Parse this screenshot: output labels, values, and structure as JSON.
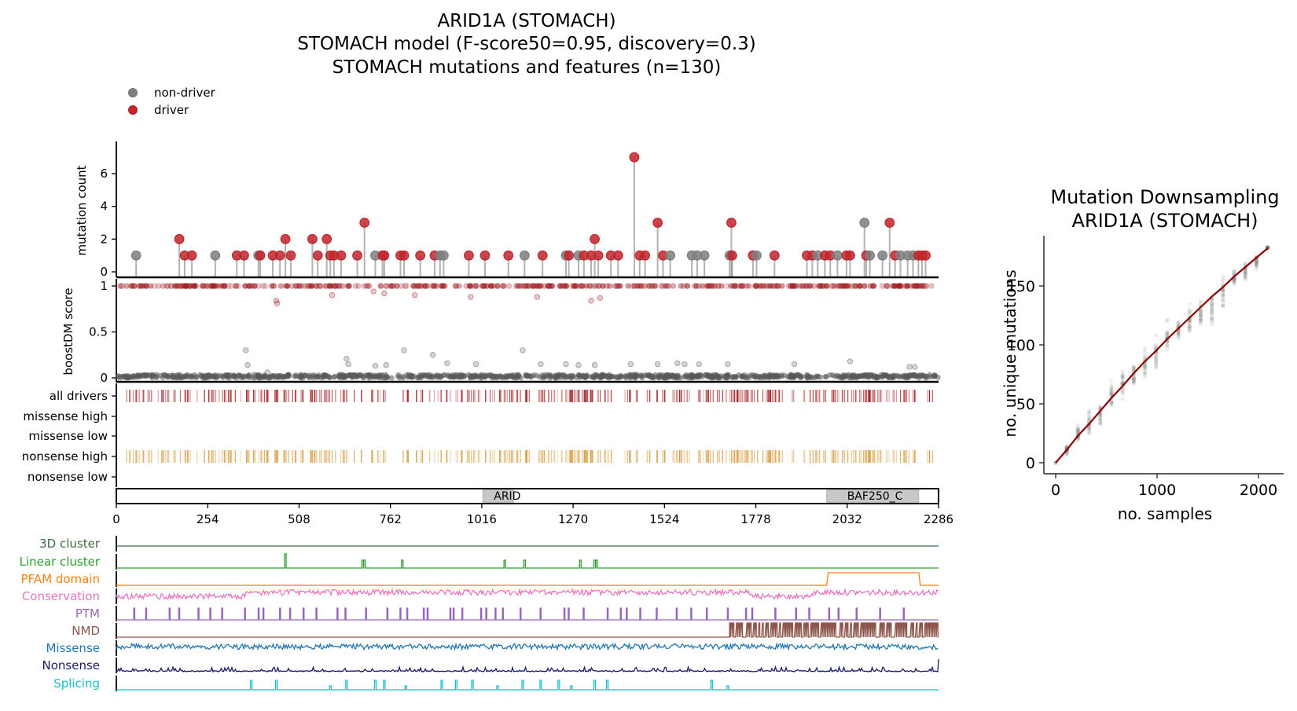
{
  "chart_data": [
    {
      "id": "main",
      "type": "lollipop",
      "title_lines": [
        "ARID1A (STOMACH)",
        "STOMACH model (F-score50=0.95, discovery=0.3)",
        "STOMACH mutations and features (n=130)"
      ],
      "legend": {
        "placement": "top-left",
        "entries": [
          {
            "label": "non-driver",
            "color": "#7f7f7f"
          },
          {
            "label": "driver",
            "color": "#c0272d"
          }
        ]
      },
      "colors": {
        "driver": "#c0272d",
        "non_driver": "#7f7f7f",
        "driver_dark": "#9b1b1b",
        "all_drivers_bars": "#a11d21",
        "nonsense_bars": "#d49a3a",
        "domain_fill": "#c8c8c8"
      },
      "xaxis": {
        "range": [
          0,
          2286
        ],
        "ticks": [
          0,
          254,
          508,
          762,
          1016,
          1270,
          1524,
          1778,
          2032,
          2286
        ]
      },
      "mutation_count": {
        "ylabel": "mutation count",
        "ylim": [
          0,
          7.4
        ],
        "yticks": [
          0,
          2,
          4,
          6
        ],
        "points": [
          {
            "pos": 55,
            "count": 1,
            "driver": false
          },
          {
            "pos": 175,
            "count": 2,
            "driver": true
          },
          {
            "pos": 190,
            "count": 1,
            "driver": true
          },
          {
            "pos": 210,
            "count": 1,
            "driver": true
          },
          {
            "pos": 275,
            "count": 1,
            "driver": false
          },
          {
            "pos": 335,
            "count": 1,
            "driver": true
          },
          {
            "pos": 355,
            "count": 1,
            "driver": true
          },
          {
            "pos": 395,
            "count": 1,
            "driver": false
          },
          {
            "pos": 400,
            "count": 1,
            "driver": true
          },
          {
            "pos": 435,
            "count": 1,
            "driver": true
          },
          {
            "pos": 455,
            "count": 1,
            "driver": true
          },
          {
            "pos": 470,
            "count": 2,
            "driver": true
          },
          {
            "pos": 485,
            "count": 1,
            "driver": true
          },
          {
            "pos": 545,
            "count": 2,
            "driver": true
          },
          {
            "pos": 560,
            "count": 1,
            "driver": true
          },
          {
            "pos": 585,
            "count": 2,
            "driver": true
          },
          {
            "pos": 595,
            "count": 1,
            "driver": true
          },
          {
            "pos": 605,
            "count": 1,
            "driver": true
          },
          {
            "pos": 625,
            "count": 1,
            "driver": true
          },
          {
            "pos": 670,
            "count": 1,
            "driver": true
          },
          {
            "pos": 690,
            "count": 3,
            "driver": true
          },
          {
            "pos": 720,
            "count": 1,
            "driver": false
          },
          {
            "pos": 740,
            "count": 1,
            "driver": true
          },
          {
            "pos": 745,
            "count": 1,
            "driver": true
          },
          {
            "pos": 790,
            "count": 1,
            "driver": true
          },
          {
            "pos": 800,
            "count": 1,
            "driver": true
          },
          {
            "pos": 845,
            "count": 1,
            "driver": true
          },
          {
            "pos": 885,
            "count": 1,
            "driver": true
          },
          {
            "pos": 900,
            "count": 1,
            "driver": false
          },
          {
            "pos": 910,
            "count": 1,
            "driver": false
          },
          {
            "pos": 980,
            "count": 1,
            "driver": true
          },
          {
            "pos": 1025,
            "count": 1,
            "driver": true
          },
          {
            "pos": 1090,
            "count": 1,
            "driver": true
          },
          {
            "pos": 1135,
            "count": 1,
            "driver": false
          },
          {
            "pos": 1185,
            "count": 1,
            "driver": true
          },
          {
            "pos": 1250,
            "count": 1,
            "driver": false
          },
          {
            "pos": 1258,
            "count": 1,
            "driver": true
          },
          {
            "pos": 1285,
            "count": 1,
            "driver": false
          },
          {
            "pos": 1300,
            "count": 1,
            "driver": true
          },
          {
            "pos": 1320,
            "count": 1,
            "driver": true
          },
          {
            "pos": 1330,
            "count": 2,
            "driver": true
          },
          {
            "pos": 1340,
            "count": 1,
            "driver": true
          },
          {
            "pos": 1375,
            "count": 1,
            "driver": true
          },
          {
            "pos": 1395,
            "count": 1,
            "driver": true
          },
          {
            "pos": 1440,
            "count": 7,
            "driver": true
          },
          {
            "pos": 1455,
            "count": 1,
            "driver": true
          },
          {
            "pos": 1470,
            "count": 1,
            "driver": true
          },
          {
            "pos": 1505,
            "count": 3,
            "driver": true
          },
          {
            "pos": 1520,
            "count": 1,
            "driver": true
          },
          {
            "pos": 1540,
            "count": 1,
            "driver": false
          },
          {
            "pos": 1600,
            "count": 1,
            "driver": false
          },
          {
            "pos": 1615,
            "count": 1,
            "driver": false
          },
          {
            "pos": 1635,
            "count": 1,
            "driver": false
          },
          {
            "pos": 1705,
            "count": 1,
            "driver": false
          },
          {
            "pos": 1710,
            "count": 3,
            "driver": true
          },
          {
            "pos": 1712,
            "count": 1,
            "driver": true
          },
          {
            "pos": 1770,
            "count": 1,
            "driver": true
          },
          {
            "pos": 1780,
            "count": 1,
            "driver": false
          },
          {
            "pos": 1830,
            "count": 1,
            "driver": true
          },
          {
            "pos": 1920,
            "count": 1,
            "driver": true
          },
          {
            "pos": 1935,
            "count": 1,
            "driver": true
          },
          {
            "pos": 1950,
            "count": 1,
            "driver": false
          },
          {
            "pos": 1970,
            "count": 1,
            "driver": true
          },
          {
            "pos": 1985,
            "count": 1,
            "driver": true
          },
          {
            "pos": 2005,
            "count": 1,
            "driver": false
          },
          {
            "pos": 2030,
            "count": 1,
            "driver": true
          },
          {
            "pos": 2040,
            "count": 1,
            "driver": true
          },
          {
            "pos": 2080,
            "count": 3,
            "driver": false
          },
          {
            "pos": 2085,
            "count": 1,
            "driver": true
          },
          {
            "pos": 2095,
            "count": 1,
            "driver": false
          },
          {
            "pos": 2130,
            "count": 1,
            "driver": false
          },
          {
            "pos": 2150,
            "count": 3,
            "driver": true
          },
          {
            "pos": 2165,
            "count": 1,
            "driver": true
          },
          {
            "pos": 2180,
            "count": 1,
            "driver": false
          },
          {
            "pos": 2200,
            "count": 1,
            "driver": false
          },
          {
            "pos": 2215,
            "count": 1,
            "driver": false
          },
          {
            "pos": 2230,
            "count": 1,
            "driver": true
          },
          {
            "pos": 2240,
            "count": 1,
            "driver": true
          },
          {
            "pos": 2250,
            "count": 1,
            "driver": true
          }
        ]
      },
      "boostdm": {
        "ylabel": "boostDM score",
        "ylim": [
          -0.02,
          1.04
        ],
        "yticks": [
          0,
          0.5,
          1
        ],
        "yticklabels": [
          "0",
          "0.5",
          "1"
        ],
        "driver_score_band": 1.0,
        "nondriver_score_band": 0.02,
        "outliers": [
          {
            "pos": 445,
            "score": 0.84,
            "driver": true
          },
          {
            "pos": 447,
            "score": 0.81,
            "driver": true
          },
          {
            "pos": 600,
            "score": 0.9,
            "driver": true
          },
          {
            "pos": 715,
            "score": 0.94,
            "driver": true
          },
          {
            "pos": 745,
            "score": 0.92,
            "driver": true
          },
          {
            "pos": 830,
            "score": 0.9,
            "driver": true
          },
          {
            "pos": 985,
            "score": 0.88,
            "driver": true
          },
          {
            "pos": 1170,
            "score": 0.88,
            "driver": true
          },
          {
            "pos": 1320,
            "score": 0.84,
            "driver": true
          },
          {
            "pos": 1345,
            "score": 0.87,
            "driver": true
          },
          {
            "pos": 360,
            "score": 0.3,
            "driver": false
          },
          {
            "pos": 365,
            "score": 0.14,
            "driver": false
          },
          {
            "pos": 420,
            "score": 0.06,
            "driver": false
          },
          {
            "pos": 640,
            "score": 0.21,
            "driver": false
          },
          {
            "pos": 645,
            "score": 0.15,
            "driver": false
          },
          {
            "pos": 720,
            "score": 0.13,
            "driver": false
          },
          {
            "pos": 750,
            "score": 0.14,
            "driver": false
          },
          {
            "pos": 800,
            "score": 0.3,
            "driver": false
          },
          {
            "pos": 880,
            "score": 0.25,
            "driver": false
          },
          {
            "pos": 920,
            "score": 0.16,
            "driver": false
          },
          {
            "pos": 1000,
            "score": 0.15,
            "driver": false
          },
          {
            "pos": 1130,
            "score": 0.3,
            "driver": false
          },
          {
            "pos": 1180,
            "score": 0.15,
            "driver": false
          },
          {
            "pos": 1250,
            "score": 0.15,
            "driver": false
          },
          {
            "pos": 1285,
            "score": 0.14,
            "driver": false
          },
          {
            "pos": 1330,
            "score": 0.14,
            "driver": false
          },
          {
            "pos": 1430,
            "score": 0.15,
            "driver": false
          },
          {
            "pos": 1505,
            "score": 0.15,
            "driver": false
          },
          {
            "pos": 1560,
            "score": 0.16,
            "driver": false
          },
          {
            "pos": 1580,
            "score": 0.15,
            "driver": false
          },
          {
            "pos": 1620,
            "score": 0.15,
            "driver": false
          },
          {
            "pos": 1700,
            "score": 0.15,
            "driver": false
          },
          {
            "pos": 1885,
            "score": 0.15,
            "driver": false
          },
          {
            "pos": 2040,
            "score": 0.18,
            "driver": false
          },
          {
            "pos": 2205,
            "score": 0.12,
            "driver": false
          },
          {
            "pos": 2220,
            "score": 0.12,
            "driver": false
          }
        ]
      },
      "track_rows": [
        "all drivers",
        "missense high",
        "missense low",
        "nonsense high",
        "nonsense low"
      ],
      "domains": [
        {
          "name": "ARID",
          "start": 1019,
          "end": 1104
        },
        {
          "name": "BAF250_C",
          "start": 1975,
          "end": 2231
        }
      ],
      "feature_tracks": [
        {
          "label": "3D cluster",
          "color": "#3f6b47",
          "kind": "flat"
        },
        {
          "label": "Linear cluster",
          "color": "#2ca02c",
          "kind": "spikes",
          "spikes": [
            470,
            685,
            690,
            795,
            1080,
            1135,
            1290,
            1330,
            1335
          ]
        },
        {
          "label": "PFAM domain",
          "color": "#ff7f0e",
          "kind": "step",
          "start": 1975,
          "end": 2231
        },
        {
          "label": "Conservation",
          "color": "#e377c2",
          "kind": "noise"
        },
        {
          "label": "PTM",
          "color": "#9467bd",
          "kind": "bars"
        },
        {
          "label": "NMD",
          "color": "#8c564b",
          "kind": "dense_from",
          "from": 1705
        },
        {
          "label": "Missense",
          "color": "#1f77b4",
          "kind": "noise"
        },
        {
          "label": "Nonsense",
          "color": "#1a1a6e",
          "kind": "lownoise"
        },
        {
          "label": "Splicing",
          "color": "#17becf",
          "kind": "spikes",
          "spikes": [
            375,
            445,
            595,
            640,
            720,
            745,
            805,
            905,
            945,
            990,
            1060,
            1130,
            1180,
            1230,
            1265,
            1330,
            1365,
            1655,
            1700
          ]
        }
      ]
    },
    {
      "id": "downsampling",
      "type": "scatter",
      "title_lines": [
        "Mutation Downsampling",
        "ARID1A (STOMACH)"
      ],
      "xlabel": "no. samples",
      "ylabel": "no. unique mutations",
      "xlim": [
        -150,
        2300
      ],
      "ylim": [
        -8,
        190
      ],
      "xticks": [
        0,
        1000,
        2000
      ],
      "yticks": [
        0,
        50,
        100,
        150
      ],
      "line_color": "#8b0000",
      "line": {
        "x": [
          0,
          110,
          220,
          330,
          440,
          550,
          660,
          770,
          880,
          990,
          1100,
          1210,
          1320,
          1430,
          1540,
          1650,
          1760,
          1870,
          1980,
          2090
        ],
        "y": [
          0,
          11,
          23,
          33,
          44,
          55,
          65,
          76,
          86,
          95,
          105,
          114,
          123,
          132,
          141,
          149,
          158,
          166,
          174,
          182
        ]
      },
      "scatter_spread": {
        "x": [
          110,
          220,
          330,
          440,
          550,
          660,
          770,
          880,
          990,
          1100,
          1210,
          1320,
          1430,
          1540,
          1650,
          1760,
          1870,
          1980,
          2090
        ],
        "min": [
          5,
          15,
          21,
          25,
          44,
          47,
          57,
          68,
          74,
          90,
          100,
          101,
          110,
          116,
          128,
          145,
          152,
          163,
          182
        ],
        "max": [
          18,
          35,
          47,
          57,
          72,
          85,
          92,
          103,
          111,
          123,
          125,
          136,
          143,
          150,
          161,
          168,
          174,
          178,
          183
        ]
      }
    }
  ]
}
